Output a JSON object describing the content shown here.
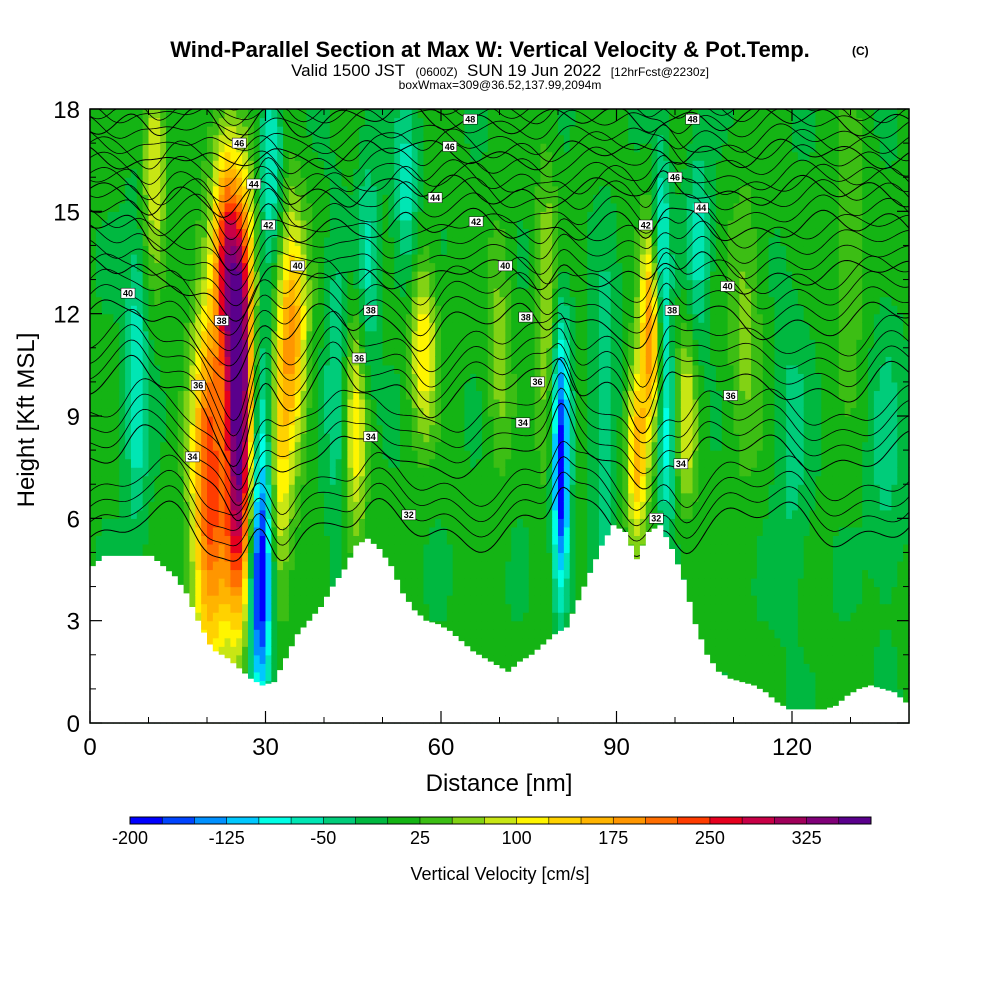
{
  "title": {
    "main": "Wind-Parallel Section at Max W: Vertical Velocity & Pot.Temp.",
    "copyright": "(C)",
    "valid_prefix": "Valid 1500 JST",
    "valid_utc": "(0600Z)",
    "valid_date": "SUN 19 Jun 2022",
    "forecast": "[12hrFcst@2230z]",
    "box_info": "boxWmax=309@36.52,137.99,2094m"
  },
  "chart_data": {
    "type": "heatmap",
    "xlabel": "Distance [nm]",
    "ylabel": "Height [Kft MSL]",
    "xlim": [
      0,
      140
    ],
    "ylim": [
      0,
      18
    ],
    "x_ticks": [
      "0",
      "30",
      "60",
      "90",
      "120"
    ],
    "y_ticks": [
      "0",
      "3",
      "6",
      "9",
      "12",
      "15",
      "18"
    ],
    "colorbar": {
      "title": "Vertical Velocity [cm/s]",
      "min": -200,
      "max": 375,
      "step": 25,
      "tick_labels": [
        "-200",
        "-125",
        "-50",
        "25",
        "100",
        "175",
        "250",
        "325"
      ],
      "colors": [
        "#0000ff",
        "#0044ff",
        "#0090ff",
        "#00c8ff",
        "#00ffe6",
        "#00e6b4",
        "#00cc7a",
        "#00b840",
        "#14b414",
        "#3cbe14",
        "#82d214",
        "#c8e614",
        "#fff500",
        "#ffd200",
        "#ffb400",
        "#ff9600",
        "#ff6e00",
        "#ff3c00",
        "#e6001e",
        "#c80046",
        "#a0005a",
        "#800078",
        "#5a008c"
      ]
    },
    "terrain_kft": [
      [
        0,
        4.6
      ],
      [
        2,
        4.9
      ],
      [
        5,
        4.9
      ],
      [
        8,
        4.9
      ],
      [
        10,
        4.9
      ],
      [
        12,
        4.6
      ],
      [
        14,
        4.3
      ],
      [
        16,
        3.8
      ],
      [
        18,
        3.0
      ],
      [
        20,
        2.3
      ],
      [
        21,
        2.1
      ],
      [
        23,
        1.9
      ],
      [
        25,
        1.6
      ],
      [
        27,
        1.3
      ],
      [
        29,
        1.1
      ],
      [
        31,
        1.2
      ],
      [
        33,
        1.9
      ],
      [
        35,
        2.6
      ],
      [
        37,
        3.0
      ],
      [
        39,
        3.4
      ],
      [
        41,
        4.0
      ],
      [
        43,
        4.5
      ],
      [
        45,
        5.2
      ],
      [
        47,
        5.4
      ],
      [
        49,
        5.1
      ],
      [
        51,
        4.6
      ],
      [
        53,
        3.8
      ],
      [
        55,
        3.3
      ],
      [
        57,
        3.0
      ],
      [
        59,
        2.9
      ],
      [
        61,
        2.7
      ],
      [
        63,
        2.4
      ],
      [
        65,
        2.1
      ],
      [
        67,
        1.9
      ],
      [
        69,
        1.7
      ],
      [
        71,
        1.5
      ],
      [
        73,
        1.8
      ],
      [
        75,
        2.0
      ],
      [
        77,
        2.3
      ],
      [
        79,
        2.6
      ],
      [
        81,
        2.8
      ],
      [
        83,
        3.6
      ],
      [
        85,
        4.4
      ],
      [
        87,
        5.2
      ],
      [
        89,
        5.8
      ],
      [
        91,
        5.6
      ],
      [
        93,
        4.8
      ],
      [
        95,
        5.6
      ],
      [
        97,
        5.8
      ],
      [
        99,
        5.1
      ],
      [
        101,
        4.2
      ],
      [
        103,
        2.9
      ],
      [
        105,
        2.0
      ],
      [
        107,
        1.5
      ],
      [
        109,
        1.3
      ],
      [
        111,
        1.2
      ],
      [
        113,
        1.1
      ],
      [
        115,
        0.9
      ],
      [
        117,
        0.6
      ],
      [
        119,
        0.4
      ],
      [
        121,
        0.4
      ],
      [
        123,
        0.4
      ],
      [
        125,
        0.4
      ],
      [
        127,
        0.5
      ],
      [
        129,
        0.8
      ],
      [
        131,
        1.0
      ],
      [
        133,
        1.1
      ],
      [
        135,
        1.0
      ],
      [
        137,
        0.9
      ],
      [
        139,
        0.6
      ],
      [
        140,
        0.6
      ]
    ],
    "w_cells": [
      {
        "x": 20.5,
        "y": 7.0,
        "sx": 2.2,
        "sy": 4.0,
        "amp": 240
      },
      {
        "x": 25.5,
        "y": 11.5,
        "sx": 1.8,
        "sy": 3.2,
        "amp": 320
      },
      {
        "x": 25.5,
        "y": 6.5,
        "sx": 1.7,
        "sy": 3.0,
        "amp": 220
      },
      {
        "x": 23.0,
        "y": 13.5,
        "sx": 1.4,
        "sy": 2.5,
        "amp": 180
      },
      {
        "x": 34.5,
        "y": 11.5,
        "sx": 1.8,
        "sy": 2.6,
        "amp": 175
      },
      {
        "x": 32.5,
        "y": 7.0,
        "sx": 1.3,
        "sy": 2.8,
        "amp": 90
      },
      {
        "x": 11.0,
        "y": 16.5,
        "sx": 1.4,
        "sy": 2.2,
        "amp": 100
      },
      {
        "x": 45.5,
        "y": 8.5,
        "sx": 1.3,
        "sy": 2.5,
        "amp": 105
      },
      {
        "x": 57.0,
        "y": 11.0,
        "sx": 1.6,
        "sy": 1.8,
        "amp": 120
      },
      {
        "x": 70.0,
        "y": 11.0,
        "sx": 1.5,
        "sy": 2.5,
        "amp": 60
      },
      {
        "x": 78.0,
        "y": 12.0,
        "sx": 1.3,
        "sy": 3.5,
        "amp": 70
      },
      {
        "x": 96.0,
        "y": 11.5,
        "sx": 1.3,
        "sy": 2.2,
        "amp": 210
      },
      {
        "x": 93.5,
        "y": 8.0,
        "sx": 1.2,
        "sy": 1.8,
        "amp": 165
      },
      {
        "x": 102.0,
        "y": 9.0,
        "sx": 1.3,
        "sy": 2.0,
        "amp": 90
      },
      {
        "x": 112.0,
        "y": 11.5,
        "sx": 2.0,
        "sy": 3.0,
        "amp": 55
      },
      {
        "x": 130.0,
        "y": 14.0,
        "sx": 2.0,
        "sy": 3.0,
        "amp": 45
      },
      {
        "x": 29.0,
        "y": 4.0,
        "sx": 1.4,
        "sy": 2.5,
        "amp": -210
      },
      {
        "x": 29.0,
        "y": 9.0,
        "sx": 1.4,
        "sy": 2.5,
        "amp": -90
      },
      {
        "x": 23.0,
        "y": 10.0,
        "sx": 1.2,
        "sy": 2.5,
        "amp": -70
      },
      {
        "x": 8.0,
        "y": 10.0,
        "sx": 1.3,
        "sy": 3.0,
        "amp": -80
      },
      {
        "x": 31.0,
        "y": 16.5,
        "sx": 1.4,
        "sy": 2.0,
        "amp": -90
      },
      {
        "x": 42.0,
        "y": 10.0,
        "sx": 1.3,
        "sy": 3.0,
        "amp": -55
      },
      {
        "x": 47.5,
        "y": 13.5,
        "sx": 1.3,
        "sy": 2.5,
        "amp": -60
      },
      {
        "x": 54.0,
        "y": 15.5,
        "sx": 1.4,
        "sy": 2.0,
        "amp": -70
      },
      {
        "x": 80.5,
        "y": 6.5,
        "sx": 1.0,
        "sy": 2.2,
        "amp": -180
      },
      {
        "x": 80.5,
        "y": 10.0,
        "sx": 1.1,
        "sy": 2.0,
        "amp": -90
      },
      {
        "x": 97.5,
        "y": 13.5,
        "sx": 1.1,
        "sy": 2.2,
        "amp": -130
      },
      {
        "x": 98.5,
        "y": 8.5,
        "sx": 1.1,
        "sy": 2.0,
        "amp": -100
      },
      {
        "x": 104.0,
        "y": 14.0,
        "sx": 1.4,
        "sy": 2.0,
        "amp": -70
      },
      {
        "x": 88.0,
        "y": 9.0,
        "sx": 1.4,
        "sy": 3.0,
        "amp": -60
      },
      {
        "x": 120.0,
        "y": 8.0,
        "sx": 2.0,
        "sy": 3.0,
        "amp": -40
      },
      {
        "x": 136.0,
        "y": 8.0,
        "sx": 2.0,
        "sy": 3.0,
        "amp": -40
      }
    ],
    "theta_levels": [
      32,
      34,
      36,
      38,
      40,
      42,
      44,
      46,
      48
    ],
    "theta_labels": [
      {
        "text": "32",
        "x": 54.5,
        "y": 6.1
      },
      {
        "text": "32",
        "x": 96.8,
        "y": 6.0
      },
      {
        "text": "34",
        "x": 17.5,
        "y": 7.8
      },
      {
        "text": "34",
        "x": 48.0,
        "y": 8.4
      },
      {
        "text": "34",
        "x": 74.0,
        "y": 8.8
      },
      {
        "text": "34",
        "x": 101.0,
        "y": 7.6
      },
      {
        "text": "36",
        "x": 18.5,
        "y": 9.9
      },
      {
        "text": "36",
        "x": 46.0,
        "y": 10.7
      },
      {
        "text": "36",
        "x": 76.5,
        "y": 10.0
      },
      {
        "text": "36",
        "x": 109.5,
        "y": 9.6
      },
      {
        "text": "38",
        "x": 22.5,
        "y": 11.8
      },
      {
        "text": "38",
        "x": 48.0,
        "y": 12.1
      },
      {
        "text": "38",
        "x": 74.5,
        "y": 11.9
      },
      {
        "text": "38",
        "x": 99.5,
        "y": 12.1
      },
      {
        "text": "40",
        "x": 6.5,
        "y": 12.6
      },
      {
        "text": "40",
        "x": 35.5,
        "y": 13.4
      },
      {
        "text": "40",
        "x": 71.0,
        "y": 13.4
      },
      {
        "text": "40",
        "x": 109.0,
        "y": 12.8
      },
      {
        "text": "42",
        "x": 30.5,
        "y": 14.6
      },
      {
        "text": "42",
        "x": 66.0,
        "y": 14.7
      },
      {
        "text": "42",
        "x": 95.0,
        "y": 14.6
      },
      {
        "text": "44",
        "x": 28.0,
        "y": 15.8
      },
      {
        "text": "44",
        "x": 59.0,
        "y": 15.4
      },
      {
        "text": "44",
        "x": 104.5,
        "y": 15.1
      },
      {
        "text": "46",
        "x": 25.5,
        "y": 17.0
      },
      {
        "text": "46",
        "x": 61.5,
        "y": 16.9
      },
      {
        "text": "46",
        "x": 100.0,
        "y": 16.0
      },
      {
        "text": "48",
        "x": 65.0,
        "y": 17.7
      },
      {
        "text": "48",
        "x": 103.0,
        "y": 17.7
      }
    ]
  }
}
